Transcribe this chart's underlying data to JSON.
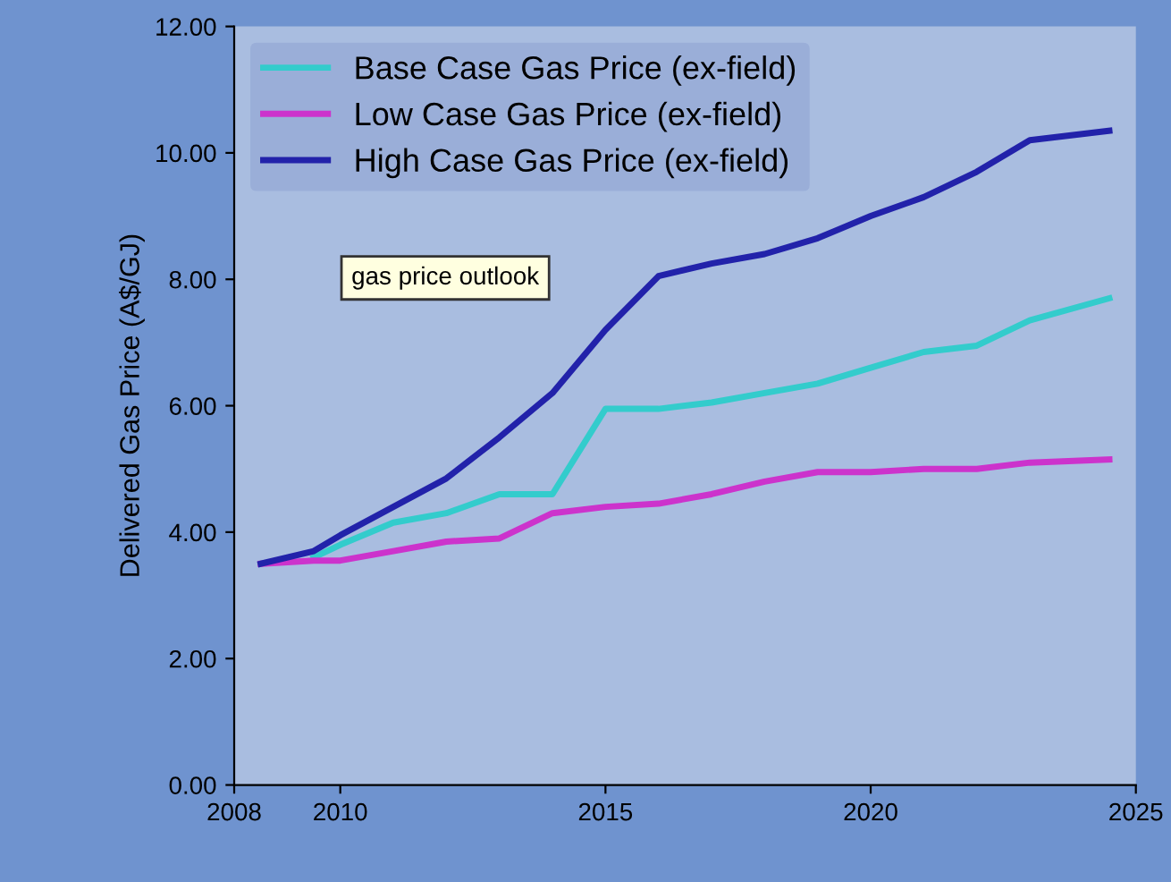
{
  "chart_data": {
    "type": "line",
    "ylabel": "Delivered Gas Price (A$/GJ)",
    "xlim": [
      2008,
      2025
    ],
    "xticks": [
      2008,
      2010,
      2015,
      2020,
      2025
    ],
    "ylim": [
      0,
      12
    ],
    "yticks": [
      {
        "value": 0,
        "label": "0.00"
      },
      {
        "value": 2,
        "label": "2.00"
      },
      {
        "value": 4,
        "label": "4.00"
      },
      {
        "value": 6,
        "label": "6.00"
      },
      {
        "value": 8,
        "label": "8.00"
      },
      {
        "value": 10,
        "label": "10.00"
      },
      {
        "value": 12,
        "label": "12.00"
      }
    ],
    "x": [
      2008.5,
      2009.5,
      2010,
      2011,
      2012,
      2013,
      2014,
      2015,
      2016,
      2017,
      2018,
      2019,
      2020,
      2021,
      2022,
      2023,
      2024.5
    ],
    "series": [
      {
        "name": "Base Case Gas Price (ex-field)",
        "color": "#33cccc",
        "values": [
          null,
          3.6,
          3.8,
          4.15,
          4.3,
          4.6,
          4.6,
          5.95,
          5.95,
          6.05,
          6.2,
          6.35,
          6.6,
          6.85,
          6.95,
          7.35,
          7.7
        ]
      },
      {
        "name": "Low Case Gas Price (ex-field)",
        "color": "#cc33cc",
        "values": [
          3.5,
          3.55,
          3.55,
          3.7,
          3.85,
          3.9,
          4.3,
          4.4,
          4.45,
          4.6,
          4.8,
          4.95,
          4.95,
          5.0,
          5.0,
          5.1,
          5.15
        ]
      },
      {
        "name": "High Case Gas Price (ex-field)",
        "color": "#2222aa",
        "values": [
          3.5,
          3.7,
          3.95,
          4.4,
          4.85,
          5.5,
          6.2,
          7.2,
          8.05,
          8.25,
          8.4,
          8.65,
          9.0,
          9.3,
          9.7,
          10.2,
          10.35
        ]
      }
    ],
    "annotations": [
      "gas price outlook"
    ],
    "grid": false,
    "legend": "top left"
  }
}
